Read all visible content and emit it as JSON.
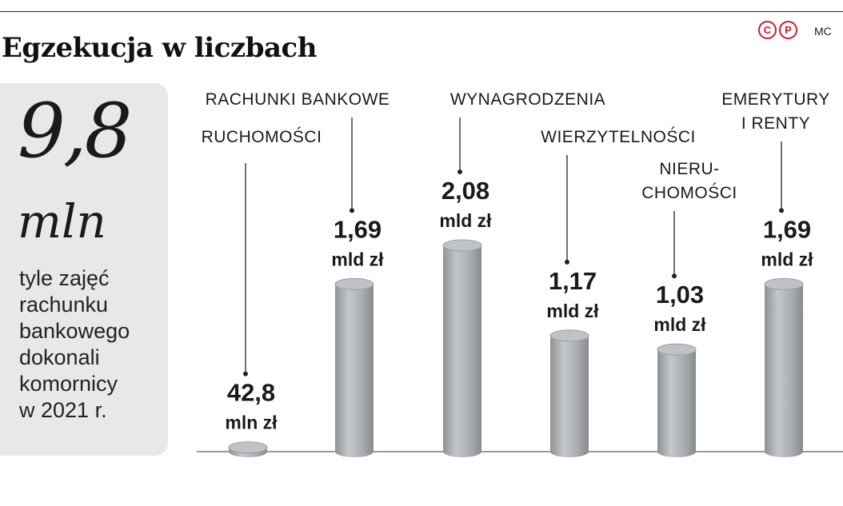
{
  "header": {
    "title": "Egzekucja w liczbach",
    "credit": "MC",
    "logo_letters": [
      "C",
      "P"
    ]
  },
  "highlight": {
    "number": "9,8",
    "unit": "mln",
    "text_lines": [
      "tyle zajęć",
      "rachunku",
      "bankowego",
      "dokonali",
      "komornicy",
      "w 2021 r."
    ]
  },
  "colors": {
    "bar": "#a9adb0",
    "bar_top": "#bfc3c6",
    "box": "#e8e8e8",
    "logo": "#d6172a"
  },
  "chart_data": {
    "type": "bar",
    "title": "Egzekucja w liczbach",
    "categories": [
      "RUCHOMOŚCI",
      "RACHUNKI BANKOWE",
      "WYNAGRODZENIA",
      "WIERZYTELNOŚCI",
      "NIERU-CHOMOŚCI",
      "EMERYTURY I RENTY"
    ],
    "category_lines": [
      [
        "RUCHOMOŚCI"
      ],
      [
        "RACHUNKI BANKOWE"
      ],
      [
        "WYNAGRODZENIA"
      ],
      [
        "WIERZYTELNOŚCI"
      ],
      [
        "NIERU-",
        "CHOMOŚCI"
      ],
      [
        "EMERYTURY",
        "I RENTY"
      ]
    ],
    "values_mld_zl": [
      0.0428,
      1.69,
      2.08,
      1.17,
      1.03,
      1.69
    ],
    "value_labels": [
      "42,8",
      "1,69",
      "2,08",
      "1,17",
      "1,03",
      "1,69"
    ],
    "unit_labels": [
      "mln zł",
      "mld zł",
      "mld zł",
      "mld zł",
      "mld zł",
      "mld zł"
    ],
    "ylim": [
      0,
      2.08
    ],
    "grid": false,
    "legend": "none"
  }
}
